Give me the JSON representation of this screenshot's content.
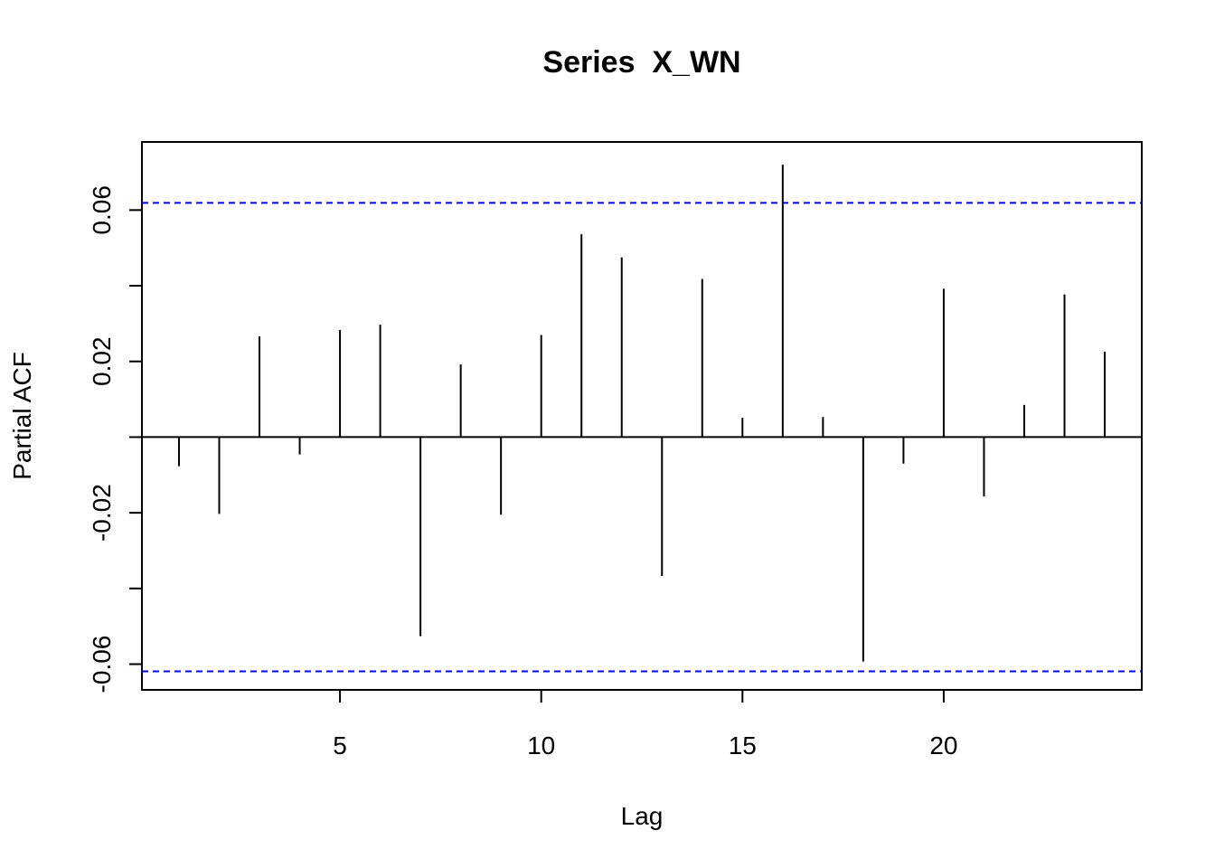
{
  "chart_data": {
    "type": "bar",
    "title": "Series  X_WN",
    "xlabel": "Lag",
    "ylabel": "Partial ACF",
    "xlim": [
      0.08,
      24.92
    ],
    "ylim": [
      -0.0668,
      0.078
    ],
    "x_ticks": [
      {
        "value": 5,
        "label": "5"
      },
      {
        "value": 10,
        "label": "10"
      },
      {
        "value": 15,
        "label": "15"
      },
      {
        "value": 20,
        "label": "20"
      }
    ],
    "y_ticks": [
      {
        "value": -0.06,
        "label": "-0.06"
      },
      {
        "value": -0.04,
        "label": ""
      },
      {
        "value": -0.02,
        "label": "-0.02"
      },
      {
        "value": 0.0,
        "label": ""
      },
      {
        "value": 0.02,
        "label": "0.02"
      },
      {
        "value": 0.04,
        "label": ""
      },
      {
        "value": 0.06,
        "label": "0.06"
      }
    ],
    "lags": [
      1,
      2,
      3,
      4,
      5,
      6,
      7,
      8,
      9,
      10,
      11,
      12,
      13,
      14,
      15,
      16,
      17,
      18,
      19,
      20,
      21,
      22,
      23,
      24
    ],
    "values": [
      -0.0077,
      -0.0203,
      0.0266,
      -0.0046,
      0.0283,
      0.0297,
      -0.0526,
      0.0192,
      -0.0205,
      0.027,
      0.0536,
      0.0475,
      -0.0367,
      0.0418,
      0.0051,
      0.072,
      0.0053,
      -0.0593,
      -0.007,
      0.0392,
      -0.0157,
      0.0085,
      0.0377,
      0.0226
    ],
    "confidence_bound": 0.0619,
    "confidence_color": "#0000ff",
    "zero_line": true,
    "grid": false,
    "legend": "none"
  }
}
